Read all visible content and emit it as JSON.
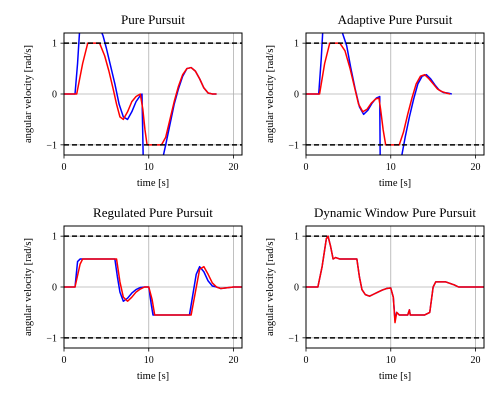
{
  "chart_data": [
    {
      "type": "line",
      "title": "Pure Pursuit",
      "xlabel": "time [s]",
      "ylabel": "angular velocity [rad/s]",
      "xlim": [
        0,
        21
      ],
      "ylim": [
        -1.2,
        1.2
      ],
      "xticks": [
        0,
        10,
        20
      ],
      "yticks": [
        -1,
        0,
        1
      ],
      "ytick_labels": [
        "−1",
        "0",
        "1"
      ],
      "grid": true,
      "reference_lines": [
        1,
        -1
      ],
      "series": [
        {
          "color": "#0000ff",
          "x": [
            0,
            1.3,
            1.6,
            1.9,
            2.0,
            2.2
          ],
          "y": [
            0,
            0,
            0.6,
            1.4,
            1.6,
            1.9
          ]
        },
        {
          "color": "#0000ff",
          "x": [
            3.8,
            4.2,
            4.6,
            5.0,
            5.5,
            6.0,
            6.5,
            7.0,
            7.5,
            8.0,
            8.5,
            9.0,
            9.2,
            9.35
          ],
          "y": [
            1.5,
            1.3,
            1.15,
            0.9,
            0.55,
            0.2,
            -0.2,
            -0.45,
            -0.5,
            -0.35,
            -0.15,
            -0.03,
            0.0,
            -1.3
          ]
        },
        {
          "color": "#0000ff",
          "x": [
            11.6,
            12.0,
            12.5,
            13.0,
            13.5,
            14.0,
            14.5,
            15.0,
            15.5,
            16.0,
            16.5,
            17.0,
            17.5,
            18.0
          ],
          "y": [
            -1.3,
            -1.0,
            -0.6,
            -0.2,
            0.1,
            0.35,
            0.5,
            0.52,
            0.45,
            0.3,
            0.12,
            0.02,
            0.0,
            0.0
          ]
        },
        {
          "color": "#ff0000",
          "x": [
            0,
            1.5,
            2.2,
            2.8,
            3.5,
            4.2,
            4.8,
            5.3,
            5.8,
            6.2,
            6.6,
            7.0,
            7.5,
            8.0,
            8.5,
            9.0,
            9.3,
            9.55,
            9.8,
            10.0,
            11.5,
            12.0,
            12.5,
            13.0,
            13.5,
            14.0,
            14.5,
            15.0,
            15.5,
            16.0,
            16.5,
            17.0,
            17.5,
            18.0
          ],
          "y": [
            0,
            0,
            0.6,
            1.0,
            1.0,
            1.0,
            0.75,
            0.45,
            0.1,
            -0.2,
            -0.45,
            -0.5,
            -0.35,
            -0.15,
            -0.05,
            0.0,
            -0.3,
            -0.7,
            -1.0,
            -1.0,
            -1.0,
            -0.85,
            -0.5,
            -0.15,
            0.15,
            0.38,
            0.5,
            0.52,
            0.45,
            0.3,
            0.12,
            0.02,
            0.0,
            0.0
          ]
        }
      ]
    },
    {
      "type": "line",
      "title": "Adaptive Pure Pursuit",
      "xlabel": "time [s]",
      "ylabel": "angular velocity [rad/s]",
      "xlim": [
        0,
        21
      ],
      "ylim": [
        -1.2,
        1.2
      ],
      "xticks": [
        0,
        10,
        20
      ],
      "yticks": [
        -1,
        0,
        1
      ],
      "ytick_labels": [
        "−1",
        "0",
        "1"
      ],
      "grid": true,
      "reference_lines": [
        1,
        -1
      ],
      "series": [
        {
          "color": "#0000ff",
          "x": [
            0,
            1.5,
            1.8,
            2.0,
            2.2
          ],
          "y": [
            0,
            0,
            0.7,
            1.3,
            1.8
          ]
        },
        {
          "color": "#0000ff",
          "x": [
            3.8,
            4.3,
            4.8,
            5.3,
            5.8,
            6.3,
            6.8,
            7.3,
            7.8,
            8.3,
            8.7,
            8.75
          ],
          "y": [
            1.5,
            1.2,
            0.95,
            0.5,
            0.1,
            -0.25,
            -0.4,
            -0.32,
            -0.18,
            -0.08,
            -0.05,
            -1.25
          ]
        },
        {
          "color": "#0000ff",
          "x": [
            11.2,
            11.7,
            12.2,
            12.7,
            13.2,
            13.7,
            14.2,
            14.7,
            15.2,
            15.7,
            16.2,
            16.7,
            17.2
          ],
          "y": [
            -1.3,
            -0.85,
            -0.45,
            -0.1,
            0.2,
            0.35,
            0.38,
            0.3,
            0.18,
            0.08,
            0.03,
            0.02,
            0.0
          ]
        },
        {
          "color": "#ff0000",
          "x": [
            0,
            1.6,
            2.2,
            2.8,
            3.5,
            4.0,
            4.6,
            5.2,
            5.7,
            6.2,
            6.7,
            7.2,
            7.7,
            8.2,
            8.6,
            8.8,
            9.1,
            9.4,
            11.0,
            11.5,
            12.0,
            12.5,
            13.0,
            13.5,
            14.0,
            14.5,
            15.0,
            15.5,
            16.0,
            16.5,
            17.0
          ],
          "y": [
            0,
            0,
            0.6,
            1.0,
            1.0,
            1.0,
            0.85,
            0.5,
            0.15,
            -0.2,
            -0.35,
            -0.3,
            -0.18,
            -0.1,
            -0.08,
            -0.3,
            -0.7,
            -1.0,
            -1.0,
            -0.75,
            -0.4,
            -0.08,
            0.2,
            0.35,
            0.38,
            0.3,
            0.2,
            0.1,
            0.05,
            0.02,
            0.0
          ]
        }
      ]
    },
    {
      "type": "line",
      "title": "Regulated Pure Pursuit",
      "xlabel": "time [s]",
      "ylabel": "angular velocity [rad/s]",
      "xlim": [
        0,
        21
      ],
      "ylim": [
        -1.2,
        1.2
      ],
      "xticks": [
        0,
        10,
        20
      ],
      "yticks": [
        -1,
        0,
        1
      ],
      "ytick_labels": [
        "−1",
        "0",
        "1"
      ],
      "grid": true,
      "reference_lines": [
        1,
        -1
      ],
      "series": [
        {
          "color": "#0000ff",
          "x": [
            0,
            1.3,
            1.6,
            1.9,
            3.0,
            4.0,
            5.0,
            6.0,
            6.3,
            6.6,
            7.0,
            7.5,
            8.0,
            8.5,
            9.0,
            9.5,
            10.0,
            10.3,
            10.5,
            11.0,
            12.0,
            13.0,
            14.0,
            14.8,
            15.2,
            15.6,
            16.0,
            16.5,
            17.0,
            17.5,
            18.0,
            18.5,
            19.0,
            20.0,
            21.0
          ],
          "y": [
            0,
            0,
            0.5,
            0.55,
            0.55,
            0.55,
            0.55,
            0.55,
            0.2,
            -0.1,
            -0.28,
            -0.22,
            -0.12,
            -0.05,
            -0.01,
            0.0,
            0.0,
            -0.35,
            -0.55,
            -0.55,
            -0.55,
            -0.55,
            -0.55,
            -0.55,
            -0.15,
            0.25,
            0.4,
            0.3,
            0.12,
            0.02,
            0.0,
            -0.03,
            -0.02,
            0.0,
            0.0
          ]
        },
        {
          "color": "#ff0000",
          "x": [
            0,
            1.3,
            1.9,
            2.2,
            3.0,
            4.0,
            5.0,
            6.2,
            6.6,
            7.0,
            7.5,
            8.0,
            8.5,
            9.0,
            9.5,
            10.0,
            10.4,
            10.7,
            11.0,
            12.0,
            13.0,
            14.0,
            15.0,
            15.5,
            16.0,
            16.5,
            17.0,
            17.5,
            18.0,
            18.5,
            19.0,
            20.0,
            21.0
          ],
          "y": [
            0,
            0,
            0.45,
            0.55,
            0.55,
            0.55,
            0.55,
            0.55,
            0.1,
            -0.2,
            -0.28,
            -0.2,
            -0.1,
            -0.04,
            0.0,
            0.0,
            -0.25,
            -0.55,
            -0.55,
            -0.55,
            -0.55,
            -0.55,
            -0.55,
            -0.1,
            0.35,
            0.4,
            0.25,
            0.08,
            0.0,
            -0.03,
            -0.02,
            0.0,
            0.0
          ]
        }
      ]
    },
    {
      "type": "line",
      "title": "Dynamic Window Pure Pursuit",
      "xlabel": "time [s]",
      "ylabel": "angular velocity [rad/s]",
      "xlim": [
        0,
        21
      ],
      "ylim": [
        -1.2,
        1.2
      ],
      "xticks": [
        0,
        10,
        20
      ],
      "yticks": [
        -1,
        0,
        1
      ],
      "ytick_labels": [
        "−1",
        "0",
        "1"
      ],
      "grid": true,
      "reference_lines": [
        1,
        -1
      ],
      "series": [
        {
          "color": "#0000ff",
          "x": [
            0,
            1.4,
            1.9,
            2.4,
            2.6,
            2.9,
            3.2,
            3.5,
            4.0,
            5.0,
            6.0,
            6.3,
            6.6,
            7.0,
            7.5,
            8.0,
            8.5,
            9.0,
            9.5,
            10.0,
            10.3,
            10.5,
            10.7,
            11.0,
            11.5,
            12.0,
            12.2,
            12.3,
            12.4,
            12.6,
            13.0,
            14.0,
            14.6,
            15.0,
            15.3,
            15.8,
            16.5,
            17.0,
            17.5,
            18.0,
            19.0,
            20.0,
            21.0
          ],
          "y": [
            0,
            0,
            0.4,
            0.95,
            1.0,
            0.8,
            0.55,
            0.58,
            0.55,
            0.55,
            0.55,
            0.2,
            -0.05,
            -0.15,
            -0.18,
            -0.14,
            -0.1,
            -0.06,
            -0.03,
            -0.02,
            -0.2,
            -0.65,
            -0.5,
            -0.55,
            -0.55,
            -0.55,
            -0.45,
            -0.55,
            -0.55,
            -0.55,
            -0.55,
            -0.55,
            -0.5,
            0.0,
            0.1,
            0.1,
            0.1,
            0.07,
            0.04,
            0.0,
            0.0,
            0.0,
            0.0
          ]
        },
        {
          "color": "#ff0000",
          "x": [
            0,
            1.4,
            1.9,
            2.4,
            2.6,
            2.9,
            3.2,
            3.5,
            4.0,
            5.0,
            6.0,
            6.3,
            6.6,
            7.0,
            7.5,
            8.0,
            8.5,
            9.0,
            9.5,
            10.0,
            10.3,
            10.5,
            10.7,
            11.0,
            11.5,
            12.0,
            12.2,
            12.3,
            12.4,
            12.6,
            13.0,
            14.0,
            14.6,
            15.0,
            15.3,
            15.8,
            16.5,
            17.0,
            17.5,
            18.0,
            19.0,
            20.0,
            21.0
          ],
          "y": [
            0,
            0,
            0.4,
            0.95,
            1.0,
            0.8,
            0.55,
            0.58,
            0.55,
            0.55,
            0.55,
            0.2,
            -0.05,
            -0.15,
            -0.18,
            -0.14,
            -0.1,
            -0.06,
            -0.03,
            -0.02,
            -0.2,
            -0.7,
            -0.5,
            -0.55,
            -0.55,
            -0.55,
            -0.45,
            -0.55,
            -0.55,
            -0.55,
            -0.55,
            -0.55,
            -0.5,
            0.0,
            0.1,
            0.1,
            0.1,
            0.07,
            0.04,
            0.0,
            0.0,
            0.0,
            0.0
          ]
        }
      ]
    }
  ]
}
